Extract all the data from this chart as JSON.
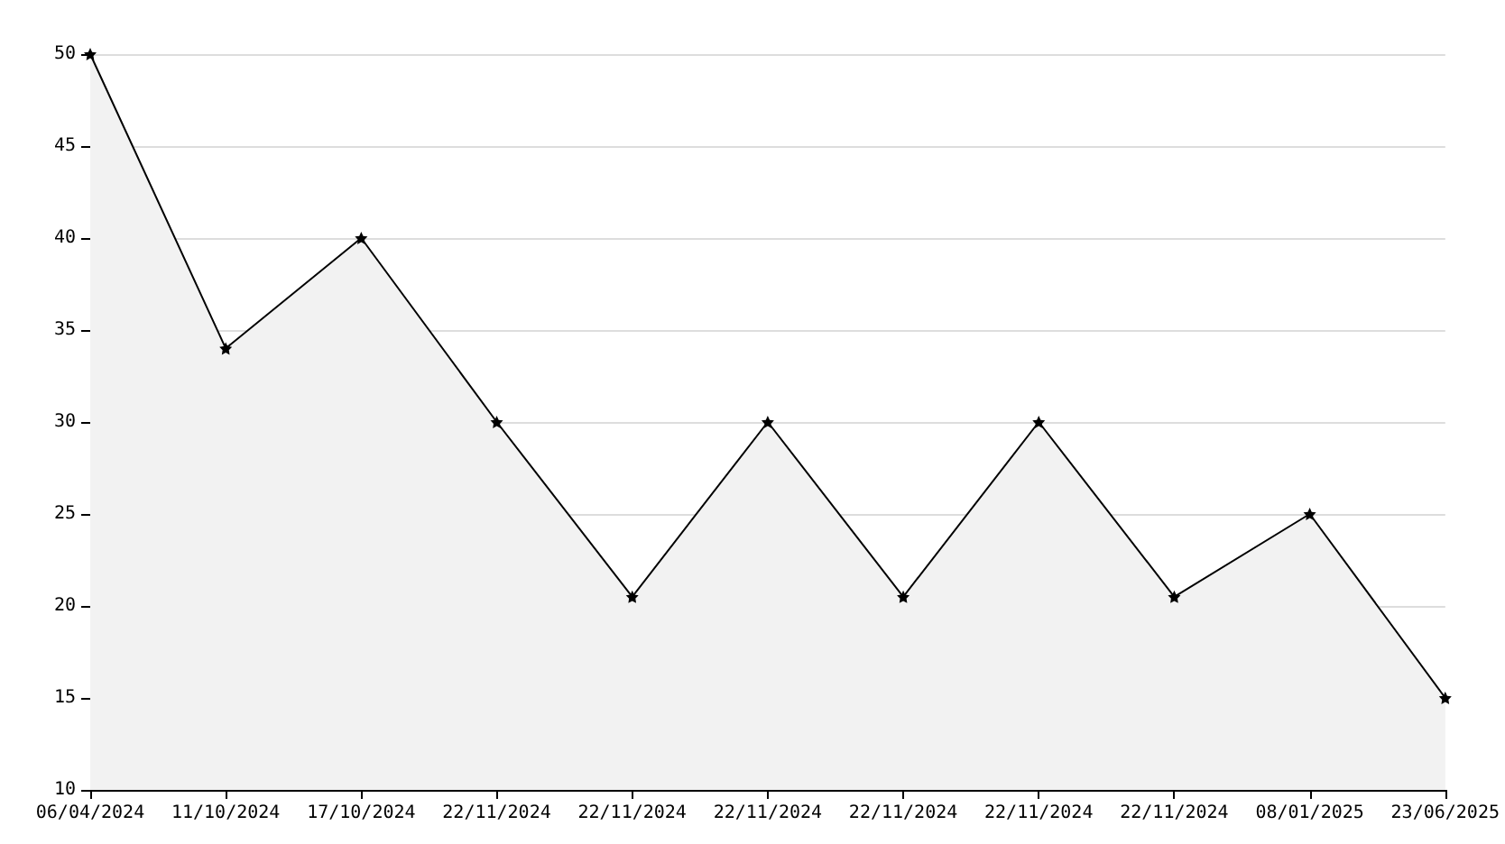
{
  "chart_data": {
    "type": "area",
    "categories": [
      "06/04/2024",
      "11/10/2024",
      "17/10/2024",
      "22/11/2024",
      "22/11/2024",
      "22/11/2024",
      "22/11/2024",
      "22/11/2024",
      "22/11/2024",
      "08/01/2025",
      "23/06/2025"
    ],
    "series": [
      {
        "color": "#000000",
        "values": [
          50,
          34,
          40,
          30,
          20.5,
          30,
          20.5,
          30,
          20.5,
          25,
          15
        ]
      }
    ],
    "ylim": [
      10,
      50
    ],
    "yticks": [
      10,
      15,
      20,
      25,
      30,
      35,
      40,
      45,
      50
    ],
    "grid": "y",
    "marker": "star"
  }
}
